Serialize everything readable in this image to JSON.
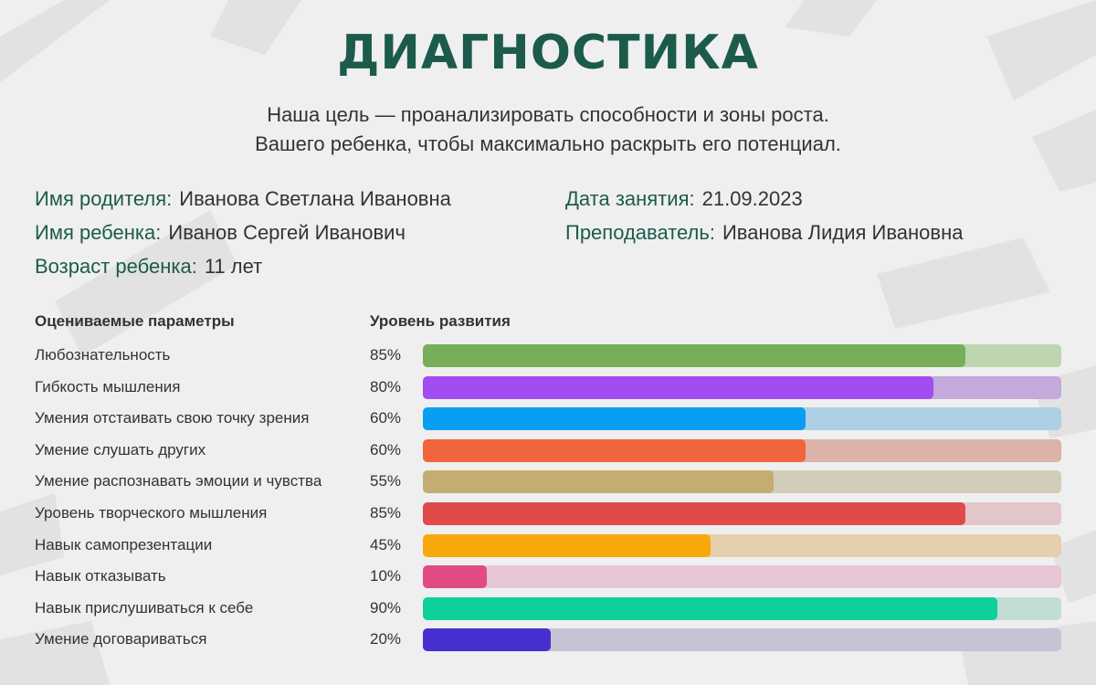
{
  "title": "ДИАГНОСТИКА",
  "subtitle": [
    "Наша цель — проанализировать способности и зоны роста.",
    "Вашего ребенка, чтобы максимально раскрыть его потенциал."
  ],
  "info": {
    "parent": {
      "label": "Имя родителя:",
      "value": "Иванова Светлана Ивановна"
    },
    "child": {
      "label": "Имя ребенка:",
      "value": "Иванов Сергей Иванович"
    },
    "age": {
      "label": "Возраст ребенка:",
      "value": "11 лет"
    },
    "date": {
      "label": "Дата занятия:",
      "value": "21.09.2023"
    },
    "teacher": {
      "label": "Преподаватель:",
      "value": "Иванова Лидия Ивановна"
    }
  },
  "colors": {
    "title": "#1c5b4c",
    "background": "#efefef"
  },
  "chart_data": {
    "type": "bar",
    "orientation": "horizontal",
    "xlabel": "Оцениваемые параметры",
    "ylabel": "Уровень развития",
    "ylim": [
      0,
      100
    ],
    "categories": [
      "Любознательность",
      "Гибкость мышления",
      "Умения отстаивать свою точку зрения",
      "Умение слушать других",
      "Умение распознавать эмоции и чувства",
      "Уровень творческого мышления",
      "Навык  самопрезентации",
      "Навык отказывать",
      "Навык прислушиваться к себе",
      "Умение договариваться"
    ],
    "values": [
      85,
      80,
      60,
      60,
      55,
      85,
      45,
      10,
      90,
      20
    ],
    "value_labels": [
      "85%",
      "80%",
      "60%",
      "60%",
      "55%",
      "85%",
      "45%",
      "10%",
      "90%",
      "20%"
    ],
    "bar_colors": [
      "#77ae5a",
      "#a24cf2",
      "#0a9ef2",
      "#f0653b",
      "#c4ad70",
      "#df4a4b",
      "#f9a80b",
      "#e24a84",
      "#0ed09b",
      "#4630cf"
    ],
    "track_colors": [
      "#bdd6b0",
      "#c4a9dc",
      "#afcfe4",
      "#dcb3a9",
      "#d2cdb8",
      "#e3c6c9",
      "#e6cfae",
      "#e6c6d4",
      "#c2dcd6",
      "#c5c3d4"
    ]
  }
}
